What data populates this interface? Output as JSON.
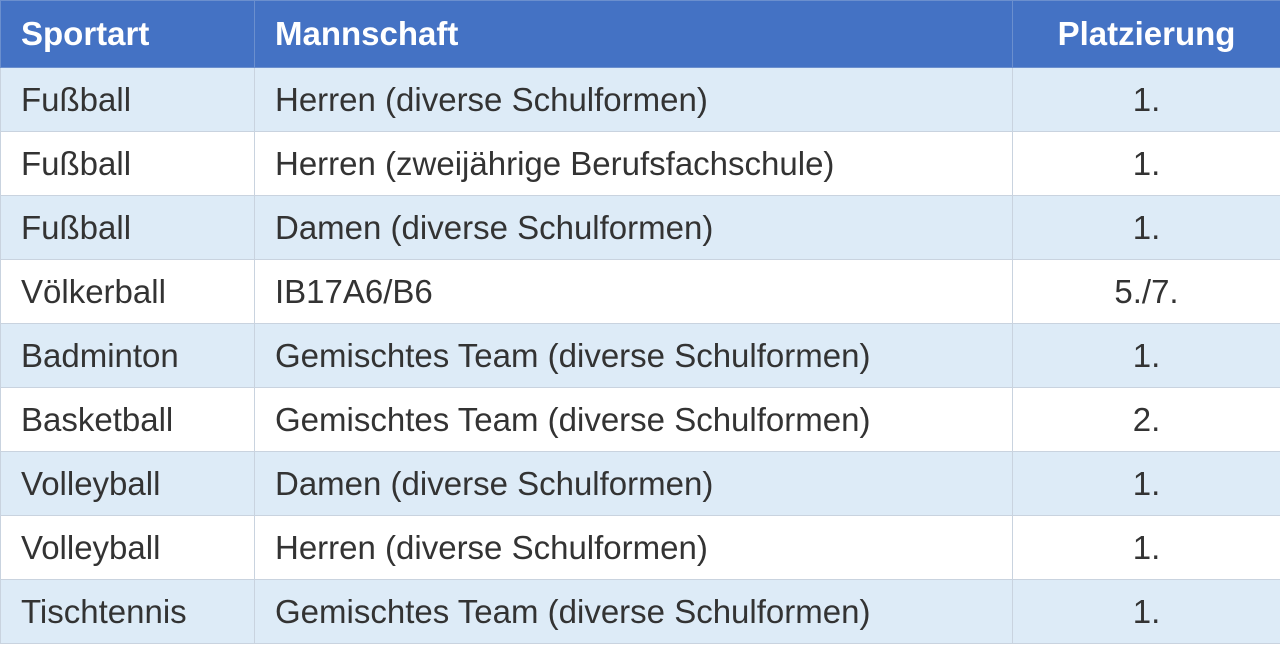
{
  "table": {
    "headers": [
      "Sportart",
      "Mannschaft",
      "Platzierung"
    ],
    "colors": {
      "header": "#4472C4",
      "band": "#DDEBF7"
    },
    "rows": [
      [
        "Fußball",
        "Herren (diverse Schulformen)",
        "1."
      ],
      [
        "Fußball",
        "Herren (zweijährige Berufsfachschule)",
        "1."
      ],
      [
        "Fußball",
        "Damen (diverse Schulformen)",
        "1."
      ],
      [
        "Völkerball",
        "IB17A6/B6",
        "5./7."
      ],
      [
        "Badminton",
        "Gemischtes Team (diverse Schulformen)",
        "1."
      ],
      [
        "Basketball",
        "Gemischtes Team (diverse Schulformen)",
        "2."
      ],
      [
        "Volleyball",
        "Damen (diverse Schulformen)",
        "1."
      ],
      [
        "Volleyball",
        "Herren (diverse Schulformen)",
        "1."
      ],
      [
        "Tischtennis",
        "Gemischtes Team (diverse Schulformen)",
        "1."
      ]
    ]
  }
}
